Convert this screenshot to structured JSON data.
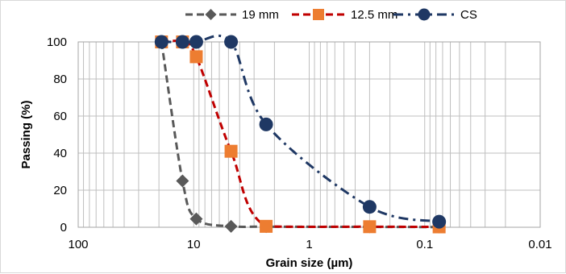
{
  "chart_data": {
    "type": "line",
    "title": "",
    "xlabel": "Grain size (µm)",
    "ylabel": "Passing (%)",
    "x_scale": "log",
    "x_reversed": true,
    "xlim": [
      100,
      0.01
    ],
    "ylim": [
      0,
      100
    ],
    "x_ticks": [
      100,
      10,
      1,
      0.1,
      0.01
    ],
    "x_tick_labels": [
      "100",
      "10",
      "1",
      "0.1",
      "0.01"
    ],
    "y_ticks": [
      0,
      20,
      40,
      60,
      80,
      100
    ],
    "y_tick_labels": [
      "0",
      "20",
      "40",
      "60",
      "80",
      "100"
    ],
    "grid": true,
    "legend_position": "top",
    "series": [
      {
        "name": "19 mm",
        "color": "#595959",
        "line_style": "dashed",
        "marker": "diamond",
        "points": [
          [
            19,
            100
          ],
          [
            12.5,
            25
          ],
          [
            9.5,
            4.5
          ],
          [
            4.75,
            0.5
          ],
          [
            2.36,
            0.3
          ],
          [
            0.3,
            0.2
          ],
          [
            0.075,
            0.1
          ]
        ]
      },
      {
        "name": "12.5 mm",
        "color": "#c00000",
        "marker_color": "#ed7d31",
        "line_style": "dashed",
        "marker": "square",
        "points": [
          [
            19,
            100
          ],
          [
            12.5,
            100
          ],
          [
            9.5,
            92
          ],
          [
            4.75,
            41
          ],
          [
            2.36,
            0.5
          ],
          [
            0.3,
            0.3
          ],
          [
            0.075,
            0.2
          ]
        ]
      },
      {
        "name": "CS",
        "color": "#1f3864",
        "marker_color": "#1f3864",
        "line_style": "dash-dot",
        "marker": "circle",
        "points": [
          [
            19,
            100
          ],
          [
            12.5,
            100
          ],
          [
            9.5,
            100
          ],
          [
            4.75,
            100
          ],
          [
            2.36,
            55.5
          ],
          [
            0.3,
            11
          ],
          [
            0.075,
            3
          ]
        ]
      }
    ]
  }
}
